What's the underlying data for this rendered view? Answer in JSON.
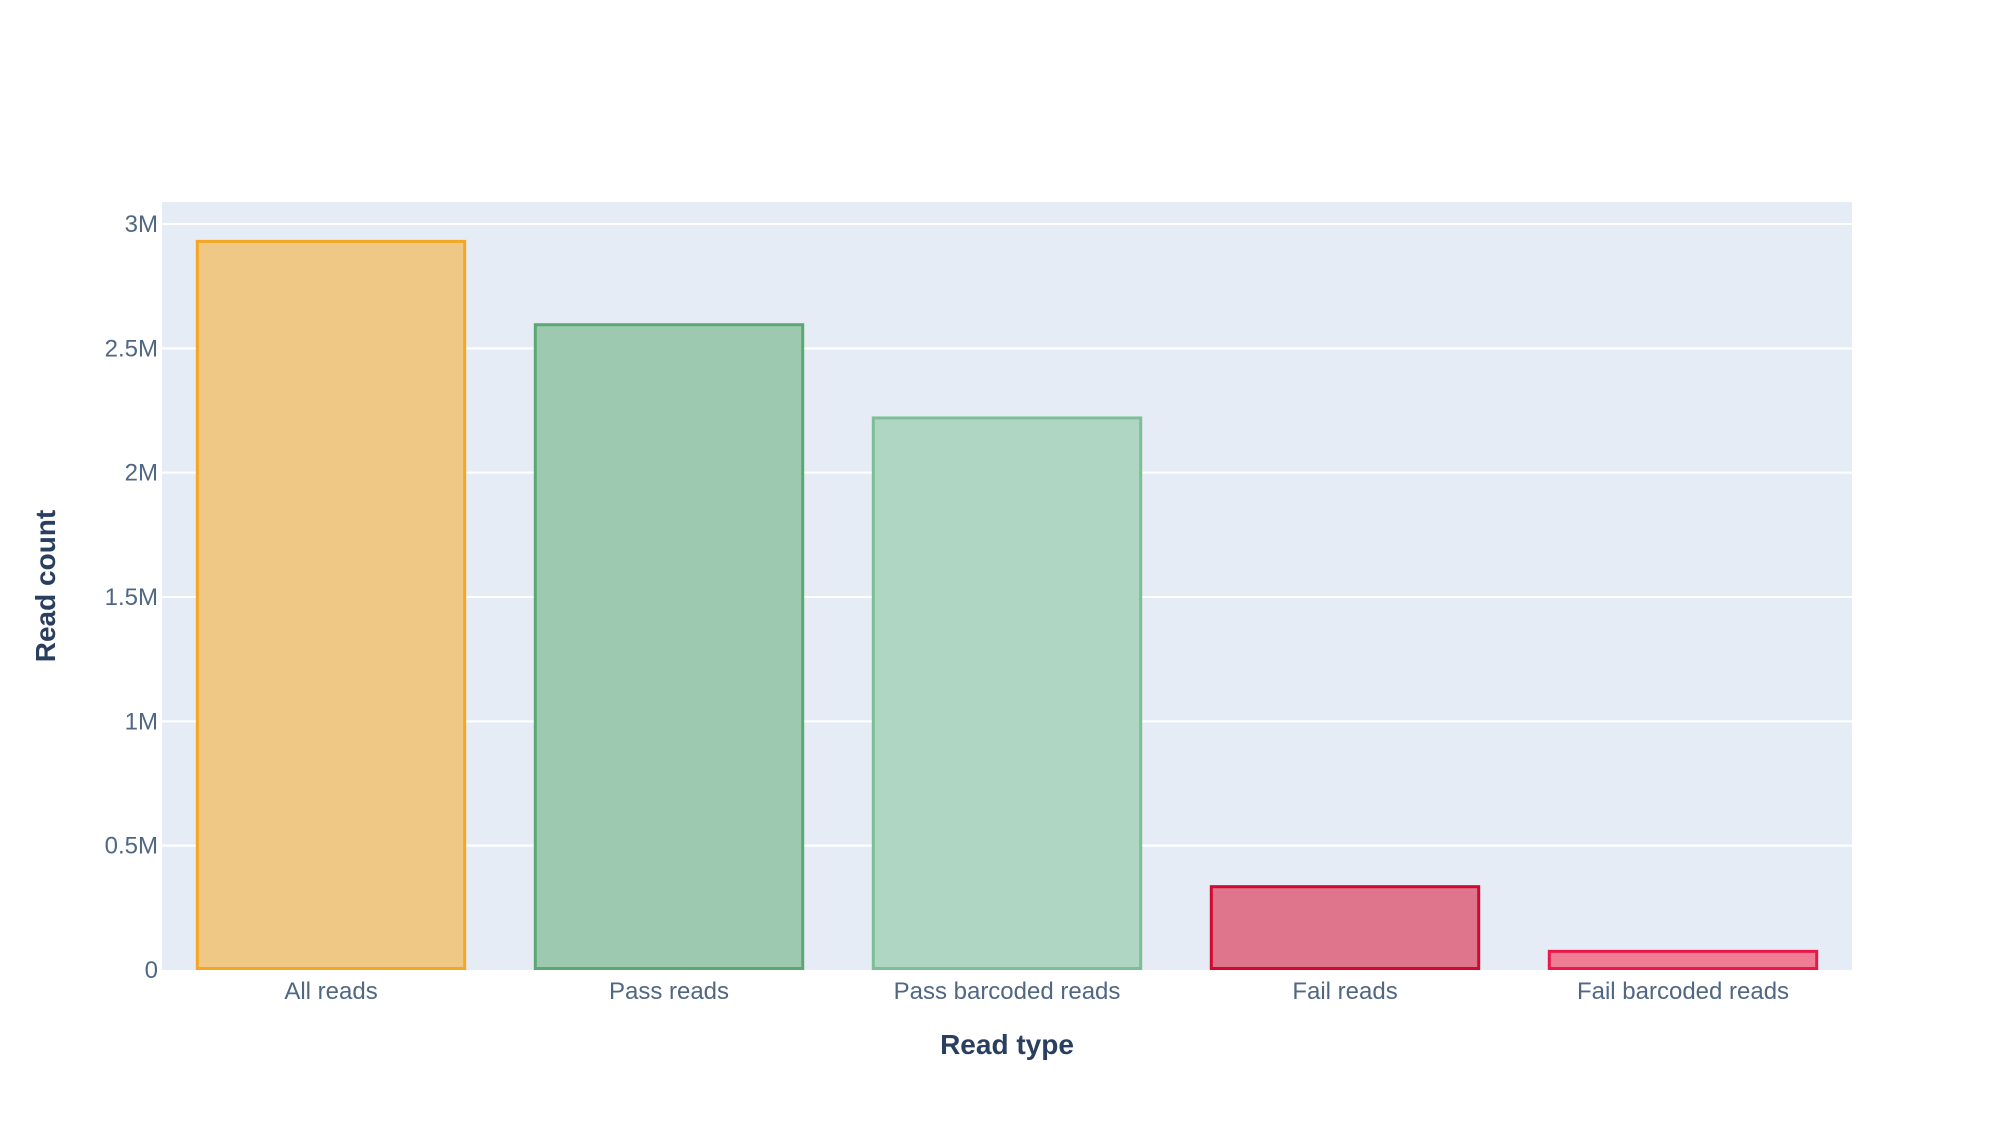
{
  "chart_data": {
    "type": "bar",
    "title": "",
    "xlabel": "Read type",
    "ylabel": "Read count",
    "categories": [
      "All reads",
      "Pass reads",
      "Pass barcoded reads",
      "Fail reads",
      "Fail barcoded reads"
    ],
    "values": [
      2930000,
      2595000,
      2220000,
      335000,
      75000
    ],
    "ylim": [
      0,
      3000000
    ],
    "yticks": [
      {
        "value": 0,
        "label": "0"
      },
      {
        "value": 500000,
        "label": "0.5M"
      },
      {
        "value": 1000000,
        "label": "1M"
      },
      {
        "value": 1500000,
        "label": "1.5M"
      },
      {
        "value": 2000000,
        "label": "2M"
      },
      {
        "value": 2500000,
        "label": "2.5M"
      },
      {
        "value": 3000000,
        "label": "3M"
      }
    ],
    "grid": true,
    "legend": "none",
    "bar_fill_colors": [
      "#f0c886",
      "#9dc9b0",
      "#afd6c2",
      "#df758c",
      "#ef7d93"
    ],
    "bar_line_colors": [
      "#f5a623",
      "#5aa872",
      "#7cbf94",
      "#d0092f",
      "#e8194a"
    ],
    "plot_background": "#e5ecf6",
    "gridline_color": "#ffffff"
  }
}
